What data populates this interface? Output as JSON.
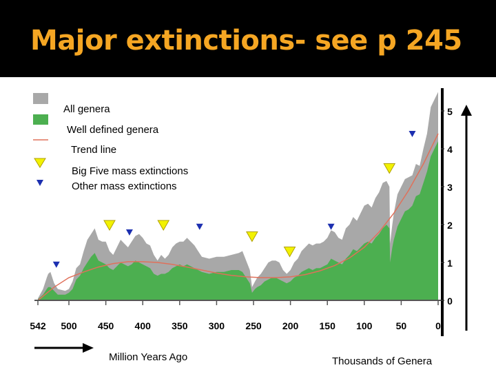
{
  "slide": {
    "title": "Major extinctions- see p 245"
  },
  "colors": {
    "title": "#f5a623",
    "all_genera": "#a8a8a8",
    "well_defined": "#4caf50",
    "trend": "#e0705a",
    "big_five": "#f2f200",
    "other": "#1c2fb0"
  },
  "chart_data": {
    "type": "area",
    "xlabel": "Million Years Ago",
    "ylabel": "Thousands of Genera",
    "x_reversed": true,
    "xlim": [
      542,
      0
    ],
    "ylim": [
      0,
      5.5
    ],
    "x_ticks": [
      542,
      500,
      450,
      400,
      350,
      300,
      250,
      200,
      150,
      100,
      50,
      0
    ],
    "y_ticks": [
      0,
      1,
      2,
      3,
      4,
      5
    ],
    "legend": [
      {
        "key": "all",
        "label": "All genera"
      },
      {
        "key": "well",
        "label": "Well defined genera"
      },
      {
        "key": "trend",
        "label": "Trend line"
      },
      {
        "key": "big",
        "label": "Big Five mass extinctions"
      },
      {
        "key": "other",
        "label": "Other mass extinctions"
      }
    ],
    "series": [
      {
        "name": "All genera",
        "x": [
          542,
          535,
          530,
          528,
          525,
          520,
          515,
          505,
          500,
          495,
          490,
          485,
          480,
          475,
          470,
          465,
          460,
          455,
          450,
          445,
          440,
          435,
          430,
          425,
          420,
          415,
          410,
          405,
          400,
          395,
          390,
          385,
          380,
          375,
          370,
          365,
          360,
          355,
          350,
          345,
          340,
          335,
          330,
          325,
          320,
          310,
          300,
          290,
          280,
          270,
          265,
          260,
          255,
          252,
          248,
          245,
          240,
          235,
          230,
          225,
          220,
          215,
          210,
          205,
          200,
          195,
          190,
          185,
          180,
          175,
          170,
          165,
          160,
          155,
          150,
          145,
          140,
          135,
          130,
          125,
          120,
          115,
          110,
          105,
          100,
          95,
          90,
          85,
          80,
          75,
          70,
          66,
          65,
          62,
          60,
          55,
          50,
          45,
          40,
          35,
          30,
          25,
          20,
          15,
          10,
          5,
          0
        ],
        "values": [
          0.05,
          0.3,
          0.6,
          0.7,
          0.75,
          0.45,
          0.3,
          0.25,
          0.3,
          0.5,
          0.85,
          0.95,
          1.3,
          1.6,
          1.75,
          1.9,
          1.6,
          1.55,
          1.55,
          1.3,
          1.2,
          1.4,
          1.6,
          1.5,
          1.4,
          1.55,
          1.7,
          1.75,
          1.65,
          1.5,
          1.45,
          1.2,
          1.05,
          1.2,
          1.1,
          1.2,
          1.4,
          1.5,
          1.55,
          1.55,
          1.65,
          1.55,
          1.45,
          1.3,
          1.15,
          1.1,
          1.15,
          1.15,
          1.2,
          1.25,
          1.3,
          1.05,
          0.8,
          0.35,
          0.5,
          0.6,
          0.7,
          0.85,
          1.0,
          1.05,
          1.05,
          1.0,
          0.8,
          0.7,
          0.8,
          1.0,
          1.1,
          1.3,
          1.4,
          1.5,
          1.45,
          1.5,
          1.5,
          1.55,
          1.65,
          1.85,
          1.8,
          1.65,
          1.6,
          1.9,
          2.0,
          2.2,
          2.1,
          2.3,
          2.5,
          2.55,
          2.45,
          2.7,
          2.85,
          3.1,
          3.15,
          3.0,
          1.5,
          2.0,
          2.3,
          2.8,
          3.0,
          3.2,
          3.25,
          3.3,
          3.6,
          3.55,
          4.0,
          4.4,
          5.1,
          5.3,
          5.5
        ]
      },
      {
        "name": "Well defined genera",
        "x": [
          542,
          535,
          530,
          528,
          525,
          520,
          515,
          505,
          500,
          495,
          490,
          485,
          480,
          475,
          470,
          465,
          460,
          455,
          450,
          445,
          440,
          435,
          430,
          425,
          420,
          415,
          410,
          405,
          400,
          395,
          390,
          385,
          380,
          375,
          370,
          365,
          360,
          355,
          350,
          345,
          340,
          335,
          330,
          325,
          320,
          310,
          300,
          290,
          280,
          270,
          265,
          260,
          255,
          252,
          248,
          245,
          240,
          235,
          230,
          225,
          220,
          215,
          210,
          205,
          200,
          195,
          190,
          185,
          180,
          175,
          170,
          165,
          160,
          155,
          150,
          145,
          140,
          135,
          130,
          125,
          120,
          115,
          110,
          105,
          100,
          95,
          90,
          85,
          80,
          75,
          70,
          66,
          65,
          62,
          60,
          55,
          50,
          45,
          40,
          35,
          30,
          25,
          20,
          15,
          10,
          5,
          0
        ],
        "values": [
          0.03,
          0.15,
          0.3,
          0.35,
          0.35,
          0.25,
          0.15,
          0.15,
          0.2,
          0.3,
          0.55,
          0.65,
          0.85,
          1.0,
          1.15,
          1.25,
          1.05,
          1.0,
          0.95,
          0.85,
          0.8,
          0.9,
          1.0,
          0.95,
          0.9,
          0.95,
          1.05,
          1.0,
          0.95,
          0.9,
          0.85,
          0.7,
          0.65,
          0.7,
          0.7,
          0.75,
          0.85,
          0.9,
          0.95,
          0.9,
          0.95,
          0.9,
          0.85,
          0.8,
          0.75,
          0.7,
          0.75,
          0.75,
          0.8,
          0.8,
          0.75,
          0.6,
          0.45,
          0.2,
          0.3,
          0.35,
          0.4,
          0.5,
          0.55,
          0.6,
          0.6,
          0.55,
          0.5,
          0.45,
          0.5,
          0.6,
          0.65,
          0.75,
          0.8,
          0.85,
          0.8,
          0.85,
          0.85,
          0.9,
          0.95,
          1.1,
          1.05,
          1.0,
          0.95,
          1.1,
          1.2,
          1.35,
          1.3,
          1.4,
          1.5,
          1.55,
          1.5,
          1.65,
          1.75,
          1.9,
          2.0,
          1.9,
          1.0,
          1.4,
          1.6,
          1.95,
          2.15,
          2.35,
          2.4,
          2.5,
          2.75,
          2.8,
          3.1,
          3.4,
          3.8,
          4.0,
          4.2
        ]
      },
      {
        "name": "Trend line",
        "x": [
          542,
          520,
          500,
          480,
          460,
          440,
          420,
          400,
          380,
          360,
          340,
          320,
          300,
          280,
          260,
          240,
          220,
          200,
          180,
          160,
          140,
          120,
          100,
          80,
          60,
          40,
          20,
          0
        ],
        "values": [
          0.0,
          0.35,
          0.6,
          0.75,
          0.88,
          0.97,
          1.02,
          1.02,
          1.0,
          0.95,
          0.88,
          0.8,
          0.72,
          0.66,
          0.62,
          0.6,
          0.6,
          0.62,
          0.68,
          0.78,
          0.92,
          1.12,
          1.4,
          1.8,
          2.3,
          2.9,
          3.6,
          4.4
        ]
      }
    ],
    "big_five_extinctions": [
      {
        "x": 445,
        "y": 2.0
      },
      {
        "x": 372,
        "y": 2.0
      },
      {
        "x": 252,
        "y": 1.7
      },
      {
        "x": 201,
        "y": 1.3
      },
      {
        "x": 66,
        "y": 3.5
      }
    ],
    "other_extinctions": [
      {
        "x": 517,
        "y": 0.95
      },
      {
        "x": 418,
        "y": 1.8
      },
      {
        "x": 323,
        "y": 1.95
      },
      {
        "x": 145,
        "y": 1.95
      },
      {
        "x": 35,
        "y": 4.4
      }
    ]
  }
}
